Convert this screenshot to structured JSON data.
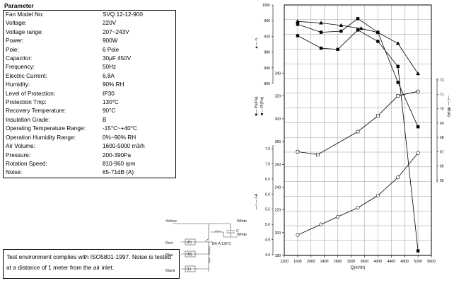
{
  "parameters": {
    "title": "Parameter",
    "rows": [
      {
        "label": "Fan Model No:",
        "value": "SVQ 12-12-900"
      },
      {
        "label": "Voltage:",
        "value": "220V"
      },
      {
        "label": "Voltage range:",
        "value": "207~243V"
      },
      {
        "label": "Power:",
        "value": "900W"
      },
      {
        "label": "Pole:",
        "value": "6 Pole"
      },
      {
        "label": "Capacitor:",
        "value": "30μF 450V"
      },
      {
        "label": "Frequency:",
        "value": "50Hz"
      },
      {
        "label": "Electric Current:",
        "value": "6,8A"
      },
      {
        "label": "Humidity:",
        "value": "90% RH"
      },
      {
        "label": "Level of Protection:",
        "value": "IP30"
      },
      {
        "label": "Protection Tmp:",
        "value": "130°C"
      },
      {
        "label": "Recovery Temperature:",
        "value": "90°C"
      },
      {
        "label": "Insulation Grade:",
        "value": "B"
      },
      {
        "label": "Operating Temperature Range:",
        "value": "-15°C~+40°C"
      },
      {
        "label": "Operation Humidity Range:",
        "value": "0%~90% RH"
      },
      {
        "label": "Air Volume:",
        "value": "1600-5000 m3/h"
      },
      {
        "label": "Pressure:",
        "value": "200-390Pa"
      },
      {
        "label": "Rotation Speed:",
        "value": "810-960 rpm"
      },
      {
        "label": "Noise:",
        "value": "65-71dB (A)"
      }
    ]
  },
  "note": "Test environment complies with ISO5801-1997. Noise is tested at a distance of 1 meter from the air inlet.",
  "wiring": {
    "wires": [
      "Yellow",
      "White",
      "White",
      "Red",
      "Blue",
      "Black"
    ],
    "taps": [
      "(H)",
      "(M)",
      "(L)"
    ],
    "capacitor_label": "C",
    "protector_label": "BR-A 130°C"
  },
  "chart_data": {
    "type": "line",
    "xlabel": "Q(m³/h)",
    "x_ticks": [
      1200,
      1600,
      2000,
      2400,
      2800,
      3200,
      3600,
      4000,
      4400,
      4800,
      5200,
      5600
    ],
    "xlim": [
      1200,
      5600
    ],
    "axes": [
      {
        "name": "n",
        "label": "n",
        "marker": "triangle",
        "ticks": [
          800,
          840,
          880,
          920,
          960,
          1000
        ],
        "tick_labels": [
          "800",
          "840",
          "880",
          "920",
          "960",
          "1000"
        ]
      },
      {
        "name": "Pst",
        "label": "Ps(Pa)",
        "marker": "square",
        "ticks": [
          180,
          200,
          220,
          240,
          260,
          280,
          300,
          320,
          340,
          360,
          380,
          400
        ],
        "tick_labels": [
          "180",
          "200",
          "220",
          "240",
          "260",
          "280",
          "300",
          "320",
          "340",
          "360",
          "380",
          "400"
        ]
      },
      {
        "name": "Pt",
        "label": "Pt(Pa)",
        "marker": "square",
        "ticks": [],
        "tick_labels": []
      },
      {
        "name": "I",
        "label": "I-A",
        "marker": "open-circle",
        "ticks": [
          4.0,
          4.5,
          5.0,
          5.5,
          6.0,
          6.5,
          7.0,
          7.5
        ],
        "tick_labels": [
          "4.0",
          "4.5",
          "5.0",
          "5.5",
          "6.0",
          "6.5",
          "7.0",
          "7.5"
        ]
      },
      {
        "name": "Lw",
        "label": "dB(A)",
        "marker": "open-square",
        "ticks": [
          65,
          66,
          67,
          68,
          69,
          70,
          71,
          72
        ],
        "tick_labels": [
          "65",
          "66",
          "67",
          "68",
          "69",
          "70",
          "71",
          "72"
        ]
      }
    ],
    "series": [
      {
        "axis": "n",
        "points": [
          [
            1600,
            958
          ],
          [
            2300,
            954
          ],
          [
            2900,
            948
          ],
          [
            3500,
            940
          ],
          [
            4000,
            930
          ],
          [
            4600,
            902
          ],
          [
            5200,
            825
          ]
        ]
      },
      {
        "axis": "Pst",
        "points": [
          [
            1600,
            373
          ],
          [
            2300,
            362
          ],
          [
            2800,
            361
          ],
          [
            3400,
            378
          ],
          [
            4000,
            368
          ],
          [
            4600,
            346
          ],
          [
            5200,
            184
          ]
        ]
      },
      {
        "axis": "Pt",
        "points": [
          [
            1600,
            383
          ],
          [
            2300,
            376
          ],
          [
            2900,
            377
          ],
          [
            3400,
            388
          ],
          [
            4000,
            376
          ],
          [
            4600,
            332
          ],
          [
            5200,
            293
          ]
        ]
      },
      {
        "axis": "I",
        "points": [
          [
            1600,
            4.65
          ],
          [
            2300,
            5.0
          ],
          [
            2800,
            5.25
          ],
          [
            3400,
            5.55
          ],
          [
            4000,
            5.95
          ],
          [
            4600,
            6.55
          ],
          [
            5200,
            7.35
          ]
        ]
      },
      {
        "axis": "Lw",
        "points": [
          [
            1600,
            67.0
          ],
          [
            2200,
            66.8
          ],
          [
            3400,
            68.4
          ],
          [
            4000,
            69.5
          ],
          [
            4600,
            70.9
          ],
          [
            5200,
            71.2
          ]
        ]
      }
    ]
  }
}
